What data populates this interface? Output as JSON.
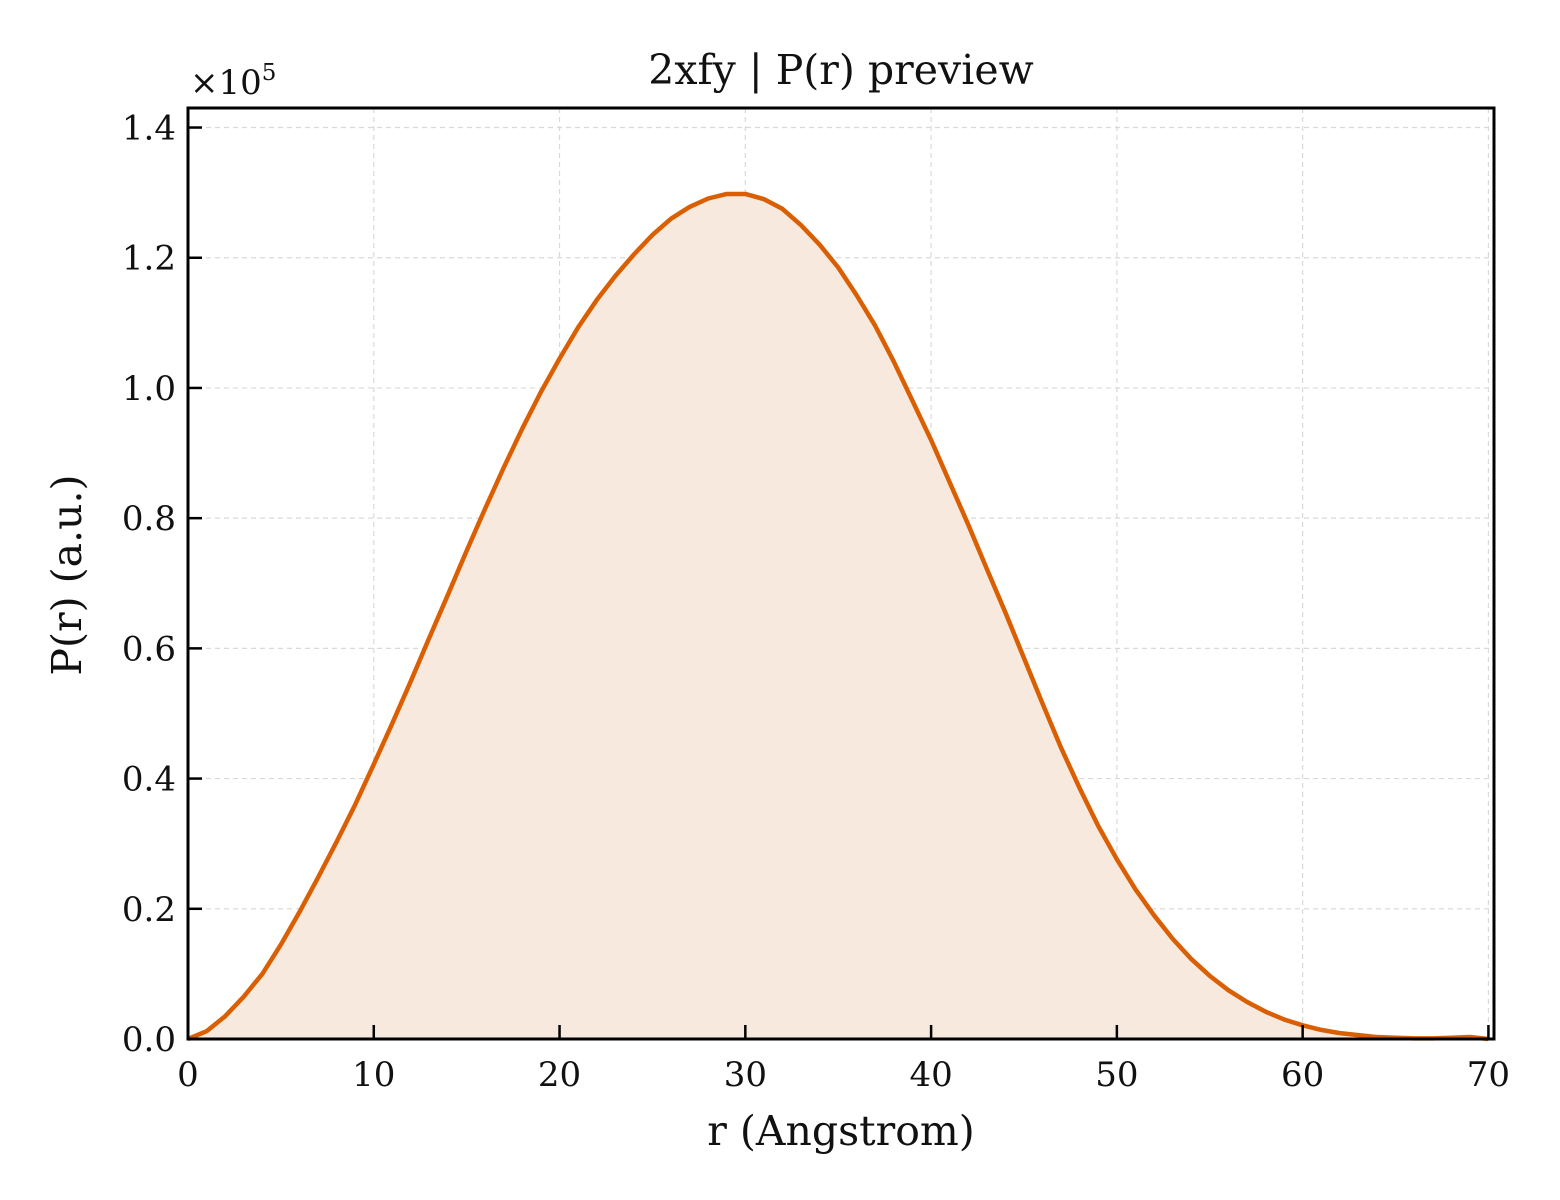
{
  "chart_data": {
    "type": "area",
    "title": "2xfy | P(r) preview",
    "xlabel": "r (Angstrom)",
    "ylabel": "P(r) (a.u.)",
    "y_multiplier_label": "×10",
    "y_multiplier_exponent": "5",
    "xlim": [
      0,
      70.3
    ],
    "ylim": [
      0,
      1.43
    ],
    "x_ticks": [
      0,
      10,
      20,
      30,
      40,
      50,
      60,
      70
    ],
    "x_tick_labels": [
      "0",
      "10",
      "20",
      "30",
      "40",
      "50",
      "60",
      "70"
    ],
    "y_ticks": [
      0,
      0.2,
      0.4,
      0.6,
      0.8,
      1.0,
      1.2,
      1.4
    ],
    "y_tick_labels": [
      "0.0",
      "0.2",
      "0.4",
      "0.6",
      "0.8",
      "1.0",
      "1.2",
      "1.4"
    ],
    "grid": true,
    "colors": {
      "line": "#d95f02",
      "fill": "#f8e9de",
      "grid": "#d9d9d9"
    },
    "series": [
      {
        "x": [
          0,
          1,
          2,
          3,
          4,
          5,
          6,
          7,
          8,
          9,
          10,
          11,
          12,
          13,
          14,
          15,
          16,
          17,
          18,
          19,
          20,
          21,
          22,
          23,
          24,
          25,
          26,
          27,
          28,
          29,
          30,
          31,
          32,
          33,
          34,
          35,
          36,
          37,
          38,
          39,
          40,
          41,
          42,
          43,
          44,
          45,
          46,
          47,
          48,
          49,
          50,
          51,
          52,
          53,
          54,
          55,
          56,
          57,
          58,
          59,
          60,
          61,
          62,
          63,
          64,
          65,
          66,
          67,
          68,
          69,
          70
        ],
        "y": [
          0.0,
          0.012,
          0.035,
          0.065,
          0.1,
          0.145,
          0.195,
          0.248,
          0.303,
          0.36,
          0.422,
          0.485,
          0.55,
          0.617,
          0.683,
          0.75,
          0.815,
          0.878,
          0.938,
          0.994,
          1.045,
          1.093,
          1.135,
          1.172,
          1.205,
          1.235,
          1.26,
          1.278,
          1.291,
          1.298,
          1.298,
          1.29,
          1.275,
          1.25,
          1.22,
          1.185,
          1.142,
          1.095,
          1.04,
          0.98,
          0.92,
          0.855,
          0.79,
          0.722,
          0.655,
          0.585,
          0.515,
          0.447,
          0.385,
          0.327,
          0.276,
          0.23,
          0.19,
          0.154,
          0.123,
          0.097,
          0.075,
          0.057,
          0.042,
          0.03,
          0.021,
          0.014,
          0.009,
          0.006,
          0.003,
          0.002,
          0.001,
          0.001,
          0.002,
          0.003,
          0.0
        ]
      }
    ]
  }
}
